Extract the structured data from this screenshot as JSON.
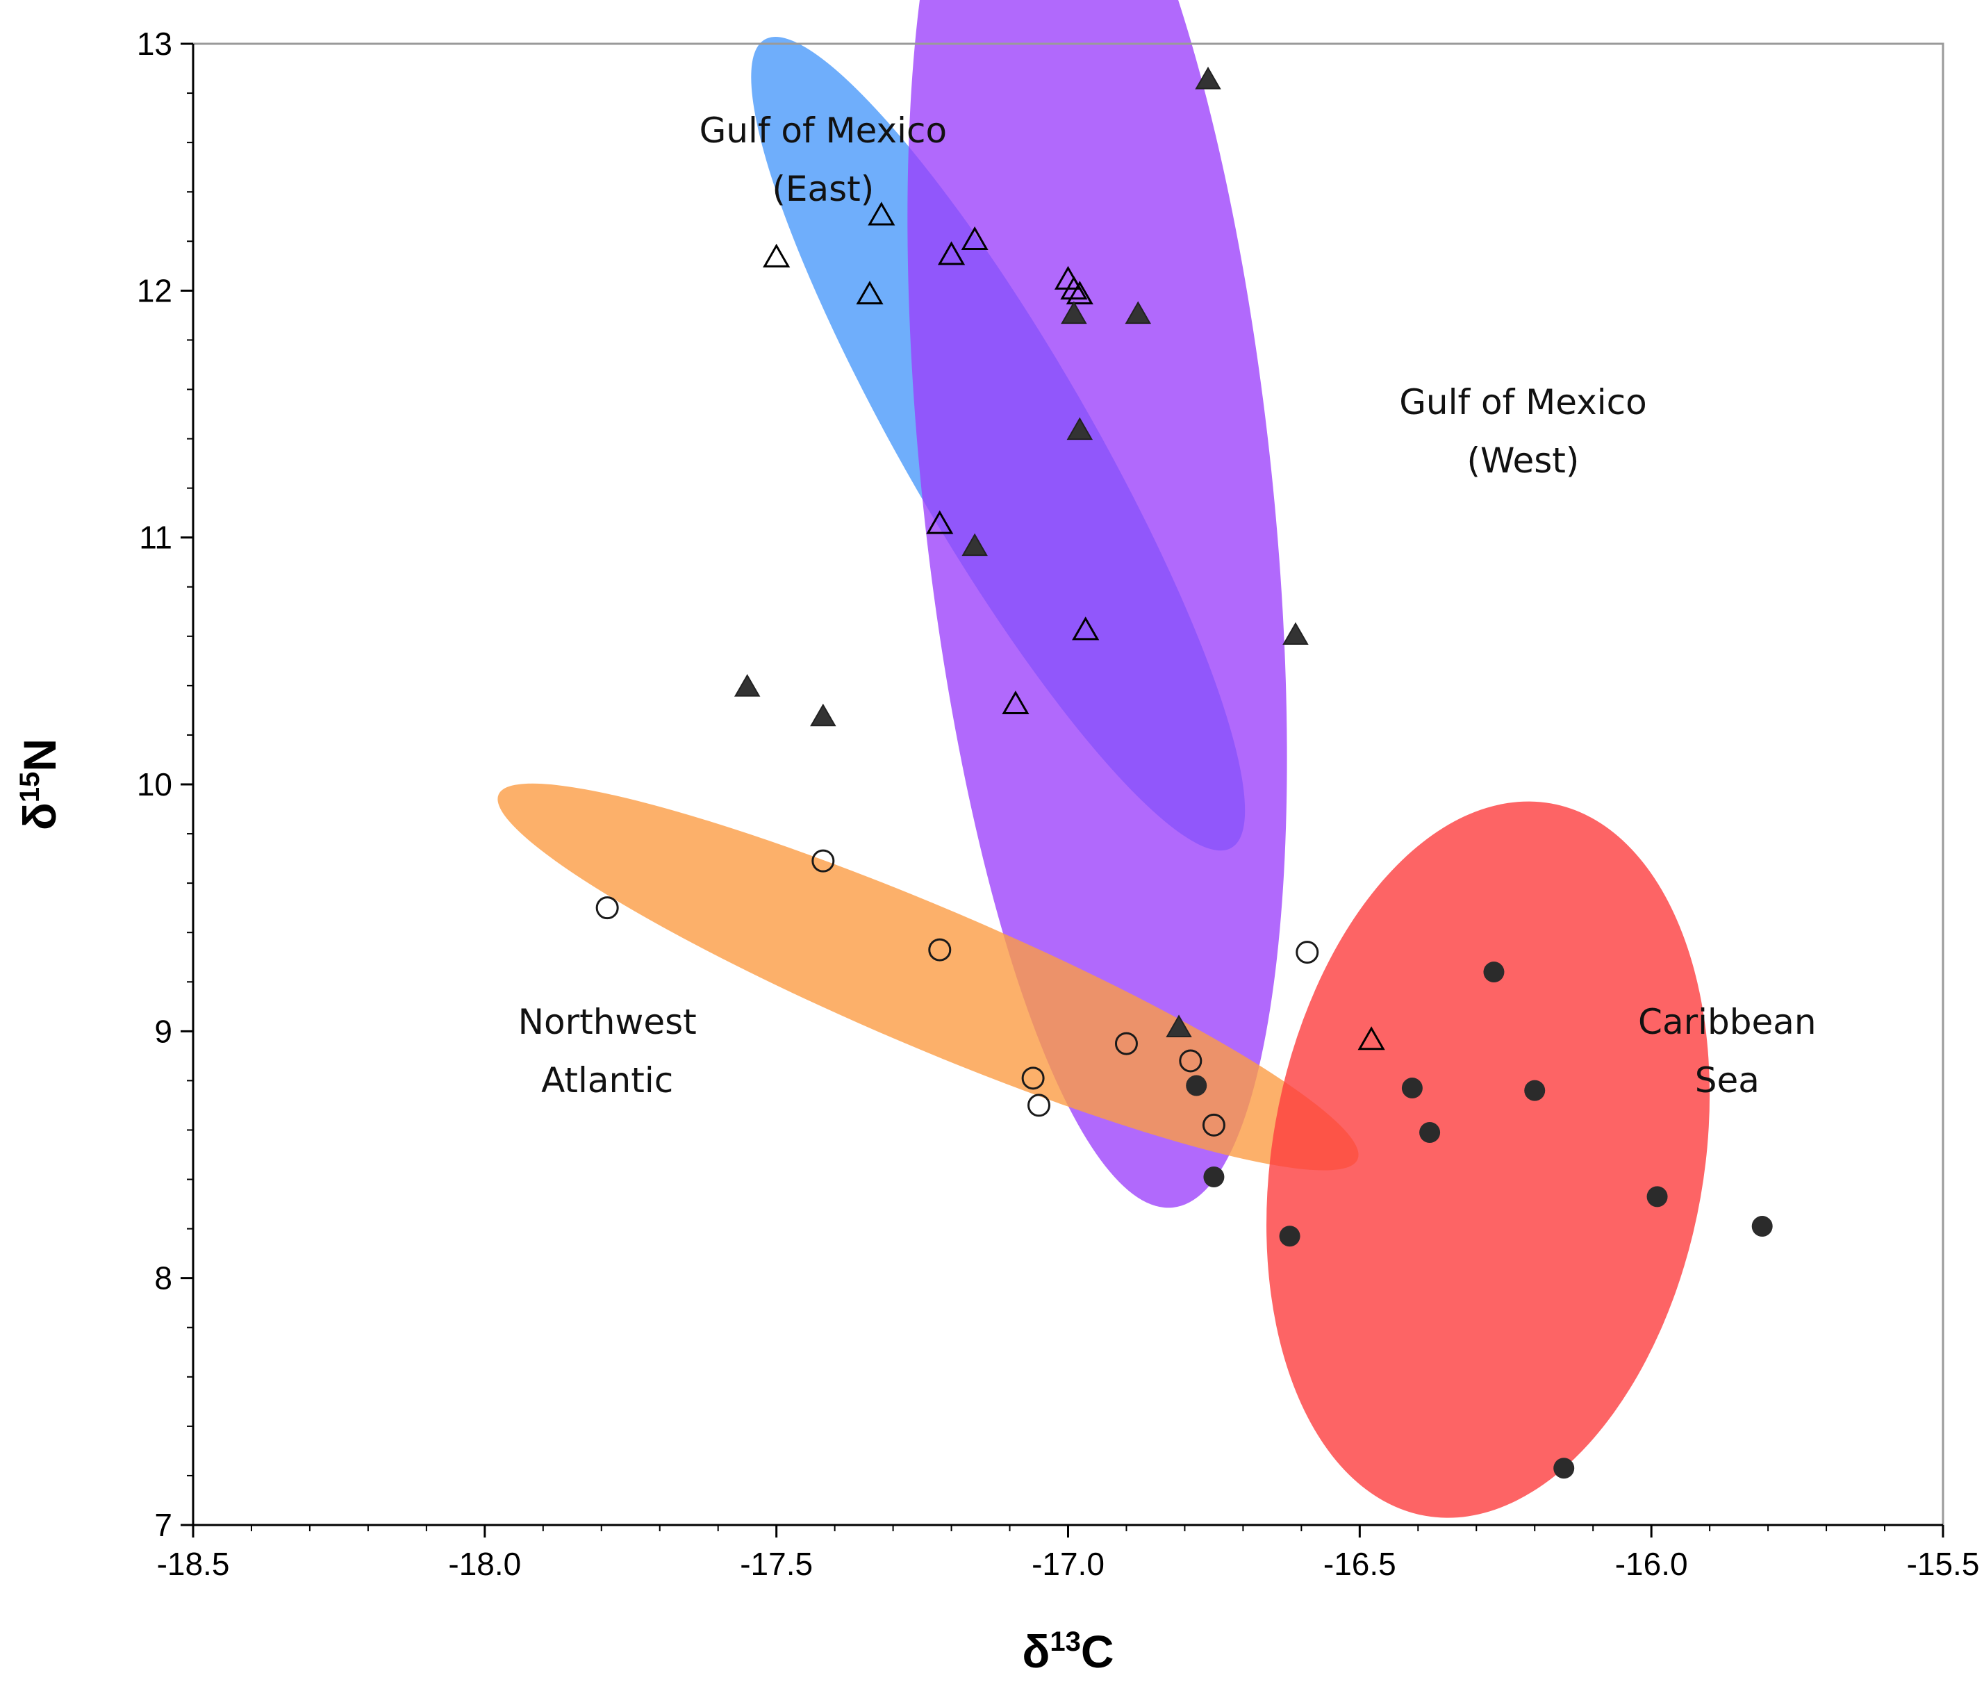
{
  "chart_data": {
    "type": "scatter",
    "title": "",
    "xlabel": {
      "symbol": "δ",
      "sup": "13",
      "element": "C"
    },
    "ylabel": {
      "symbol": "δ",
      "sup": "15",
      "element": "N"
    },
    "xlim": [
      -18.5,
      -15.5
    ],
    "ylim": [
      7,
      13
    ],
    "grid": false,
    "x_ticks": [
      -18.5,
      -18.0,
      -17.5,
      -17.0,
      -16.5,
      -16.0,
      -15.5
    ],
    "x_tick_labels": [
      "-18.5",
      "-18.0",
      "-17.5",
      "-17.0",
      "-16.5",
      "-16.0",
      "-15.5"
    ],
    "y_ticks": [
      7,
      8,
      9,
      10,
      11,
      12,
      13
    ],
    "y_tick_labels": [
      "7",
      "8",
      "9",
      "10",
      "11",
      "12",
      "13"
    ],
    "x_minor_step": 0.1,
    "y_minor_step": 0.2,
    "ellipses": [
      {
        "name": "Gulf of Mexico (East)",
        "color": "#3f93fa",
        "opacity": 0.75,
        "cx": -17.12,
        "cy": 11.38,
        "rx": 0.8,
        "ry": 0.16,
        "angle": 60
      },
      {
        "name": "Gulf of Mexico (West)",
        "color": "#9b3ffb",
        "opacity": 0.78,
        "cx": -16.95,
        "cy": 11.2,
        "rx": 1.24,
        "ry": 0.3,
        "angle": 84
      },
      {
        "name": "Northwest Atlantic",
        "color": "#fb9c45",
        "opacity": 0.8,
        "cx": -17.24,
        "cy": 9.22,
        "rx": 0.8,
        "ry": 0.12,
        "angle": 23
      },
      {
        "name": "Caribbean Sea",
        "color": "#fc3d3f",
        "opacity": 0.8,
        "cx": -16.28,
        "cy": 8.48,
        "rx": 0.37,
        "ry": 0.62,
        "angle": 10
      }
    ],
    "labels": [
      {
        "lines": [
          "Gulf of Mexico",
          "(East)"
        ],
        "x": -17.42,
        "y": 12.6
      },
      {
        "lines": [
          "Gulf of Mexico",
          "(West)"
        ],
        "x": -16.22,
        "y": 11.5
      },
      {
        "lines": [
          "Northwest",
          "Atlantic"
        ],
        "x": -17.79,
        "y": 8.99
      },
      {
        "lines": [
          "Caribbean",
          "Sea"
        ],
        "x": -15.87,
        "y": 8.99
      }
    ],
    "series": [
      {
        "name": "open triangles",
        "marker": "triangle-open",
        "points": [
          [
            -17.32,
            12.3
          ],
          [
            -17.5,
            12.13
          ],
          [
            -17.34,
            11.98
          ],
          [
            -17.2,
            12.14
          ],
          [
            -17.16,
            12.2
          ],
          [
            -17.0,
            12.04
          ],
          [
            -16.99,
            12.0
          ],
          [
            -16.98,
            11.98
          ],
          [
            -17.22,
            11.05
          ],
          [
            -16.97,
            10.62
          ],
          [
            -17.09,
            10.32
          ],
          [
            -16.48,
            8.96
          ]
        ]
      },
      {
        "name": "filled triangles",
        "marker": "triangle-filled",
        "points": [
          [
            -16.76,
            12.85
          ],
          [
            -16.99,
            11.9
          ],
          [
            -16.88,
            11.9
          ],
          [
            -16.98,
            11.43
          ],
          [
            -17.16,
            10.96
          ],
          [
            -17.55,
            10.39
          ],
          [
            -17.42,
            10.27
          ],
          [
            -16.61,
            10.6
          ],
          [
            -16.81,
            9.01
          ]
        ]
      },
      {
        "name": "open circles",
        "marker": "circle-open",
        "points": [
          [
            -17.79,
            9.5
          ],
          [
            -17.42,
            9.69
          ],
          [
            -17.22,
            9.33
          ],
          [
            -16.59,
            9.32
          ],
          [
            -16.9,
            8.95
          ],
          [
            -16.79,
            8.88
          ],
          [
            -17.06,
            8.81
          ],
          [
            -17.05,
            8.7
          ],
          [
            -16.75,
            8.62
          ]
        ]
      },
      {
        "name": "filled circles",
        "marker": "circle-filled",
        "points": [
          [
            -16.27,
            9.24
          ],
          [
            -16.78,
            8.78
          ],
          [
            -16.41,
            8.77
          ],
          [
            -16.2,
            8.76
          ],
          [
            -16.38,
            8.59
          ],
          [
            -16.75,
            8.41
          ],
          [
            -15.99,
            8.33
          ],
          [
            -16.62,
            8.17
          ],
          [
            -15.81,
            8.21
          ],
          [
            -16.15,
            7.23
          ]
        ]
      }
    ]
  }
}
